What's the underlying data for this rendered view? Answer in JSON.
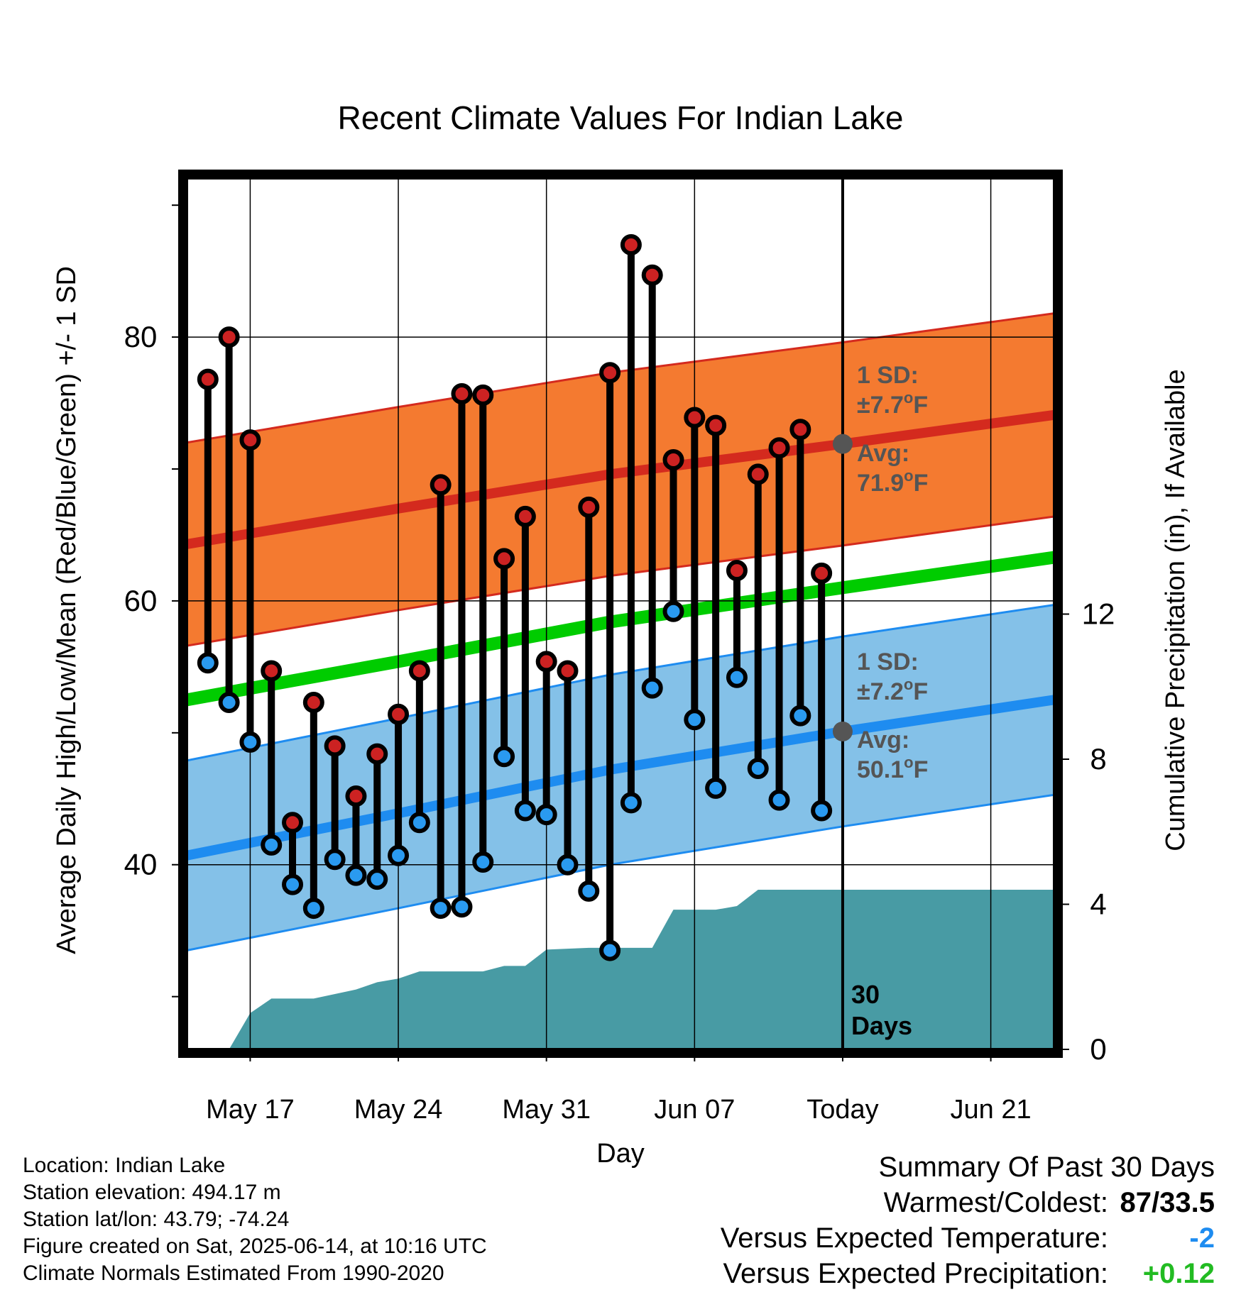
{
  "chart_data": {
    "type": "line",
    "title": "Recent Climate Values For Indian Lake",
    "xlabel": "Day",
    "ylabel": "Average Daily High/Low/Mean (Red/Blue/Green) +/- 1 SD",
    "y2label": "Cumulative Precipitation (in), If Available",
    "ylim": [
      26,
      92
    ],
    "y2lim": [
      0,
      24
    ],
    "yticks": [
      "40",
      "60",
      "80"
    ],
    "y2ticks": [
      "0",
      "4",
      "8",
      "12"
    ],
    "xlim": [
      "2025-05-14",
      "2025-06-24"
    ],
    "xticks": [
      {
        "date": "2025-05-17",
        "label": "May 17"
      },
      {
        "date": "2025-05-24",
        "label": "May 24"
      },
      {
        "date": "2025-05-31",
        "label": "May 31"
      },
      {
        "date": "2025-06-07",
        "label": "Jun 07"
      },
      {
        "date": "2025-06-14",
        "label": "Today"
      },
      {
        "date": "2025-06-21",
        "label": "Jun 21"
      }
    ],
    "today": "2025-06-14",
    "period_label": "30 Days",
    "daily": [
      {
        "date": "2025-05-15",
        "high": 76.8,
        "low": 55.3
      },
      {
        "date": "2025-05-16",
        "high": 80.0,
        "low": 52.3
      },
      {
        "date": "2025-05-17",
        "high": 72.2,
        "low": 49.3
      },
      {
        "date": "2025-05-18",
        "high": 54.7,
        "low": 41.5
      },
      {
        "date": "2025-05-19",
        "high": 43.2,
        "low": 38.5
      },
      {
        "date": "2025-05-20",
        "high": 52.3,
        "low": 36.7
      },
      {
        "date": "2025-05-21",
        "high": 49.0,
        "low": 40.4
      },
      {
        "date": "2025-05-22",
        "high": 45.2,
        "low": 39.2
      },
      {
        "date": "2025-05-23",
        "high": 48.4,
        "low": 38.9
      },
      {
        "date": "2025-05-24",
        "high": 51.4,
        "low": 40.7
      },
      {
        "date": "2025-05-25",
        "high": 54.7,
        "low": 43.2
      },
      {
        "date": "2025-05-26",
        "high": 68.8,
        "low": 36.7
      },
      {
        "date": "2025-05-27",
        "high": 75.7,
        "low": 36.8
      },
      {
        "date": "2025-05-28",
        "high": 75.6,
        "low": 40.2
      },
      {
        "date": "2025-05-29",
        "high": 63.2,
        "low": 48.2
      },
      {
        "date": "2025-05-30",
        "high": 66.4,
        "low": 44.1
      },
      {
        "date": "2025-05-31",
        "high": 55.4,
        "low": 43.8
      },
      {
        "date": "2025-06-01",
        "high": 54.7,
        "low": 40.0
      },
      {
        "date": "2025-06-02",
        "high": 67.1,
        "low": 38.0
      },
      {
        "date": "2025-06-03",
        "high": 77.3,
        "low": 33.5
      },
      {
        "date": "2025-06-04",
        "high": 87.0,
        "low": 44.7
      },
      {
        "date": "2025-06-05",
        "high": 84.7,
        "low": 53.4
      },
      {
        "date": "2025-06-06",
        "high": 70.7,
        "low": 59.2
      },
      {
        "date": "2025-06-07",
        "high": 73.9,
        "low": 51.0
      },
      {
        "date": "2025-06-08",
        "high": 73.3,
        "low": 45.8
      },
      {
        "date": "2025-06-09",
        "high": 62.3,
        "low": 54.2
      },
      {
        "date": "2025-06-10",
        "high": 69.6,
        "low": 47.3
      },
      {
        "date": "2025-06-11",
        "high": 71.6,
        "low": 44.9
      },
      {
        "date": "2025-06-12",
        "high": 73.0,
        "low": 51.3
      },
      {
        "date": "2025-06-13",
        "high": 62.1,
        "low": 44.1
      }
    ],
    "normals": {
      "dates": [
        "2025-05-14",
        "2025-05-24",
        "2025-06-03",
        "2025-06-14",
        "2025-06-24"
      ],
      "high_avg": [
        64.3,
        67.0,
        69.6,
        71.9,
        74.1
      ],
      "high_sd": 7.7,
      "low_avg": [
        40.7,
        43.9,
        47.2,
        50.1,
        52.5
      ],
      "low_sd": 7.2,
      "mean": [
        52.5,
        55.4,
        58.4,
        61.0,
        63.3
      ]
    },
    "precip_cumulative": [
      {
        "date": "2025-05-16",
        "value": 0.0
      },
      {
        "date": "2025-05-17",
        "value": 1.0
      },
      {
        "date": "2025-05-18",
        "value": 1.4
      },
      {
        "date": "2025-05-20",
        "value": 1.4
      },
      {
        "date": "2025-05-22",
        "value": 1.65
      },
      {
        "date": "2025-05-23",
        "value": 1.85
      },
      {
        "date": "2025-05-24",
        "value": 1.95
      },
      {
        "date": "2025-05-25",
        "value": 2.15
      },
      {
        "date": "2025-05-28",
        "value": 2.15
      },
      {
        "date": "2025-05-29",
        "value": 2.3
      },
      {
        "date": "2025-05-30",
        "value": 2.3
      },
      {
        "date": "2025-05-31",
        "value": 2.75
      },
      {
        "date": "2025-06-02",
        "value": 2.8
      },
      {
        "date": "2025-06-05",
        "value": 2.8
      },
      {
        "date": "2025-06-06",
        "value": 3.85
      },
      {
        "date": "2025-06-08",
        "value": 3.85
      },
      {
        "date": "2025-06-09",
        "value": 3.95
      },
      {
        "date": "2025-06-10",
        "value": 4.4
      },
      {
        "date": "2025-06-24",
        "value": 4.4
      }
    ],
    "annotations": {
      "high_sd_line1": "1 SD:",
      "high_sd_line2": "±7.7°F",
      "high_avg_line1": "Avg:",
      "high_avg_line2": "71.9°F",
      "low_sd_line1": "1 SD:",
      "low_sd_line2": "±7.2°F",
      "low_avg_line1": "Avg:",
      "low_avg_line2": "50.1°F"
    },
    "colors": {
      "high_band": "#f47a30",
      "high_line": "#d42a1e",
      "low_band": "#84c1e8",
      "low_line": "#1e8cf0",
      "mean_line": "#00cc00",
      "precip": "#489ba4",
      "high_marker": "#cc2222",
      "low_marker": "#2a9af0",
      "annotation": "#555555"
    }
  },
  "station_info": [
    "Location: Indian Lake",
    "Station elevation: 494.17 m",
    "Station lat/lon: 43.79; -74.24",
    "Figure created on Sat, 2025-06-14, at 10:16 UTC",
    "Climate Normals Estimated From 1990-2020"
  ],
  "summary": {
    "title": "Summary Of Past 30 Days",
    "warmest_coldest_label": "Warmest/Coldest:",
    "warmest_coldest_value": "87/33.5",
    "temp_label": "Versus Expected Temperature:",
    "temp_value": "-2",
    "temp_color": "#1e8cf0",
    "precip_label": "Versus Expected Precipitation:",
    "precip_value": "+0.12",
    "precip_color": "#22bb22"
  }
}
